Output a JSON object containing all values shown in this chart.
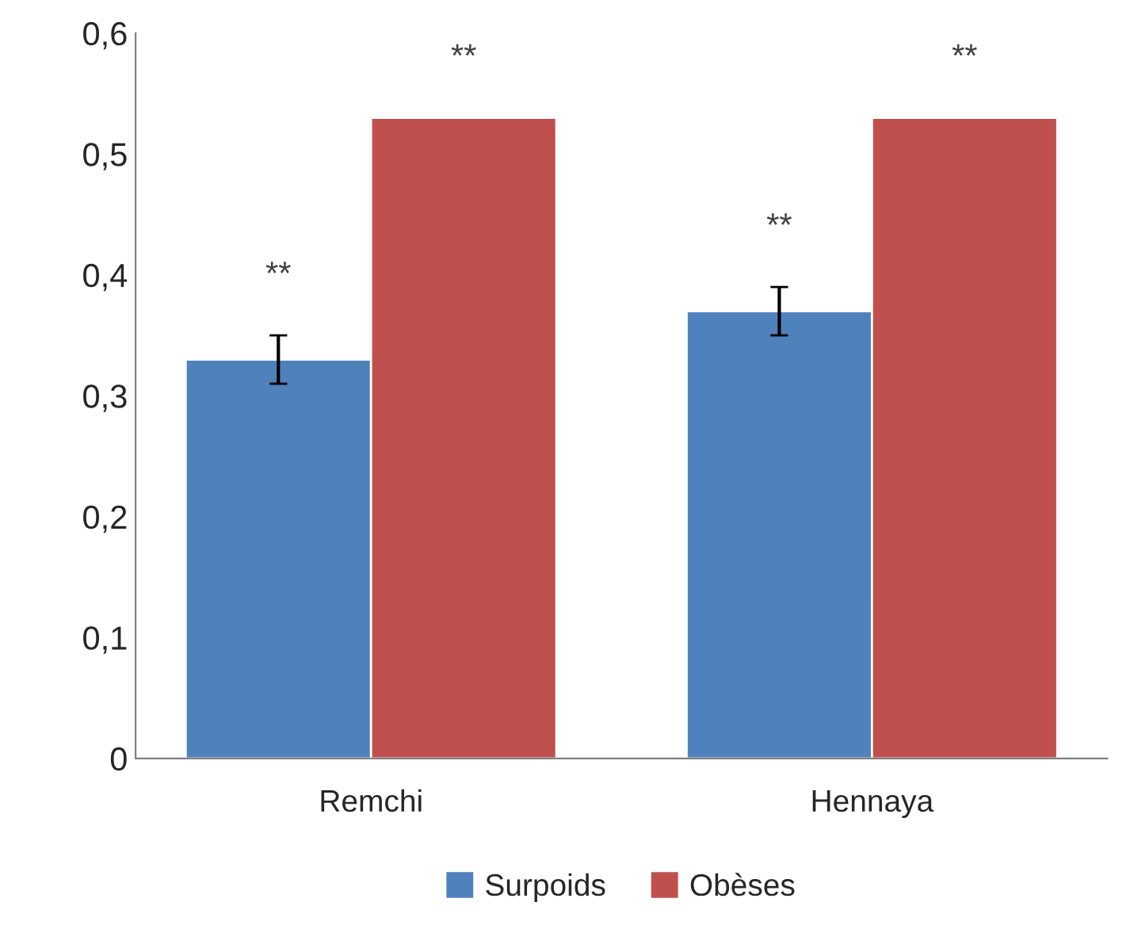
{
  "chart_data": {
    "type": "bar",
    "categories": [
      "Remchi",
      "Hennaya"
    ],
    "series": [
      {
        "name": "Surpoids",
        "color": "#4f81bd",
        "values": [
          0.33,
          0.37
        ],
        "errors": [
          0.02,
          0.02
        ]
      },
      {
        "name": "Obèses",
        "color": "#c0504d",
        "values": [
          0.53,
          0.53
        ]
      }
    ],
    "ylim": [
      0,
      0.6
    ],
    "yticks": [
      {
        "value": 0,
        "label": "0"
      },
      {
        "value": 0.1,
        "label": "0,1"
      },
      {
        "value": 0.2,
        "label": "0,2"
      },
      {
        "value": 0.3,
        "label": "0,3"
      },
      {
        "value": 0.4,
        "label": "0,4"
      },
      {
        "value": 0.5,
        "label": "0,5"
      },
      {
        "value": 0.6,
        "label": "0,6"
      }
    ],
    "annotations": [
      "**",
      "**",
      "**",
      "**"
    ],
    "legend": "bottom",
    "grid": false
  }
}
